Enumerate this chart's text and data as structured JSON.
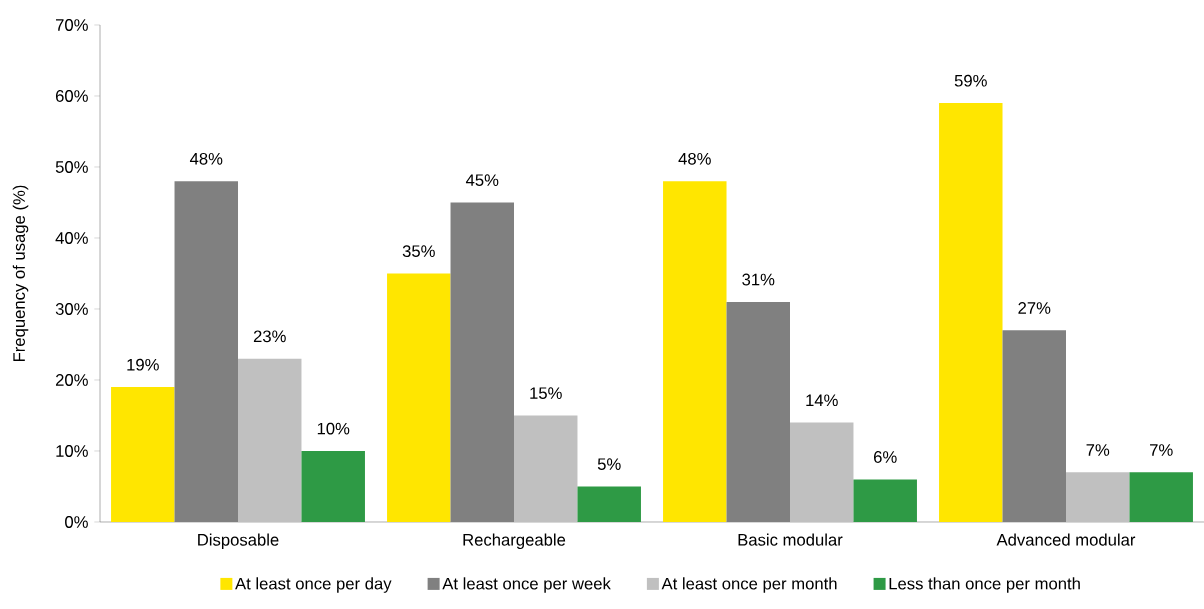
{
  "chart_data": {
    "type": "bar",
    "ylabel": "Frequency of usage (%)",
    "categories": [
      "Disposable",
      "Rechargeable",
      "Basic modular",
      "Advanced modular"
    ],
    "series": [
      {
        "name": "At least once per day",
        "color": "#ffe600",
        "values": [
          19,
          35,
          48,
          59
        ],
        "value_labels": [
          "19%",
          "35%",
          "48%",
          "59%"
        ]
      },
      {
        "name": "At least once per week",
        "color": "#808080",
        "values": [
          48,
          45,
          31,
          27
        ],
        "value_labels": [
          "48%",
          "45%",
          "31%",
          "27%"
        ]
      },
      {
        "name": "At least once per month",
        "color": "#c0c0c0",
        "values": [
          23,
          15,
          14,
          7
        ],
        "value_labels": [
          "23%",
          "15%",
          "14%",
          "7%"
        ]
      },
      {
        "name": "Less than once per month",
        "color": "#2e9a45",
        "values": [
          10,
          5,
          6,
          7
        ],
        "value_labels": [
          "10%",
          "5%",
          "6%",
          "7%"
        ]
      }
    ],
    "ylim": [
      0,
      70
    ],
    "yticks": [
      {
        "value": 0,
        "label": "0%"
      },
      {
        "value": 10,
        "label": "10%"
      },
      {
        "value": 20,
        "label": "20%"
      },
      {
        "value": 30,
        "label": "30%"
      },
      {
        "value": 40,
        "label": "40%"
      },
      {
        "value": 50,
        "label": "50%"
      },
      {
        "value": 60,
        "label": "60%"
      },
      {
        "value": 70,
        "label": "70%"
      }
    ],
    "grid": false,
    "legend": "bottom"
  }
}
